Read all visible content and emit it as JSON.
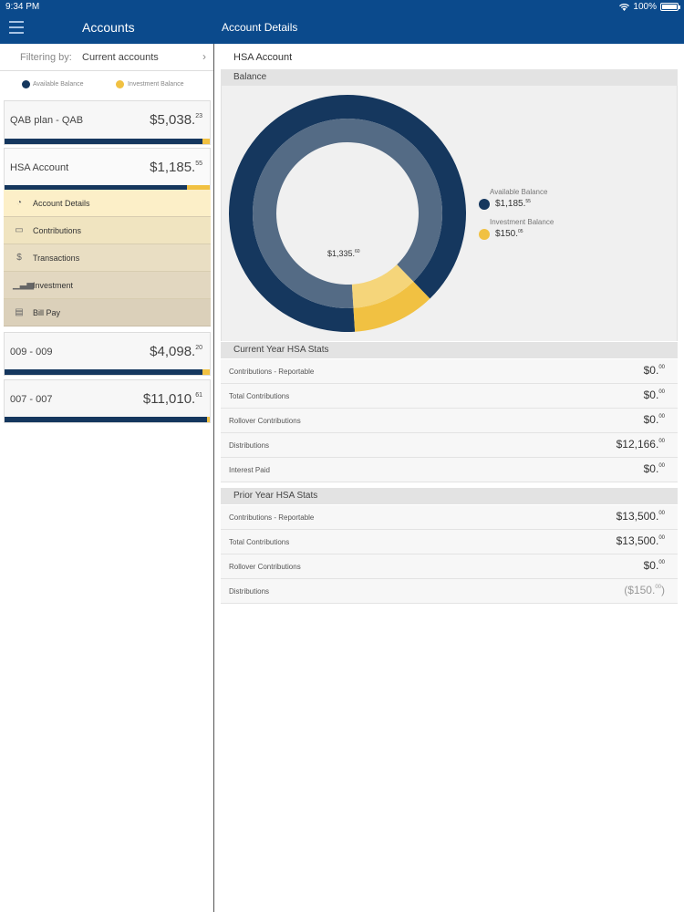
{
  "status_bar": {
    "time": "9:34 PM",
    "battery": "100%"
  },
  "header": {
    "left_title": "Accounts",
    "right_title": "Account Details"
  },
  "filter": {
    "label": "Filtering by:",
    "value": "Current accounts"
  },
  "legend": {
    "available": "Available Balance",
    "investment": "Investment Balance"
  },
  "colors": {
    "brand": "#0b4a8c",
    "available": "#15375e",
    "investment": "#f1c142",
    "ring_inner": "#546b85",
    "ring_inner_light": "#f5d57a"
  },
  "accounts": [
    {
      "name": "QAB plan - QAB",
      "amount": "$5,038.",
      "cents": "23",
      "available_pct": 0.965
    },
    {
      "name": "HSA Account",
      "amount": "$1,185.",
      "cents": "55",
      "available_pct": 0.887
    },
    {
      "name": "009 - 009",
      "amount": "$4,098.",
      "cents": "20",
      "available_pct": 0.963
    },
    {
      "name": "007 - 007",
      "amount": "$11,010.",
      "cents": "61",
      "available_pct": 0.987
    }
  ],
  "menu": [
    {
      "label": "Account Details",
      "icon": "pie-chart-icon"
    },
    {
      "label": "Contributions",
      "icon": "cash-icon"
    },
    {
      "label": "Transactions",
      "icon": "dollar-circle-icon"
    },
    {
      "label": "Investment",
      "icon": "bar-chart-icon"
    },
    {
      "label": "Bill Pay",
      "icon": "bill-icon"
    }
  ],
  "details": {
    "title": "HSA Account",
    "balance_header": "Balance",
    "total": "$1,335.",
    "total_cents": "60",
    "available_label": "Available Balance",
    "available_value": "$1,185.",
    "available_cents": "55",
    "investment_label": "Investment Balance",
    "investment_value": "$150.",
    "investment_cents": "05"
  },
  "chart_data": {
    "type": "pie",
    "categories": [
      "Available Balance",
      "Investment Balance"
    ],
    "values": [
      1185.55,
      150.05
    ]
  },
  "current_year": {
    "header": "Current Year HSA Stats",
    "rows": [
      {
        "label": "Contributions - Reportable",
        "value": "$0.",
        "cents": "00"
      },
      {
        "label": "Total Contributions",
        "value": "$0.",
        "cents": "00"
      },
      {
        "label": "Rollover Contributions",
        "value": "$0.",
        "cents": "00"
      },
      {
        "label": "Distributions",
        "value": "$12,166.",
        "cents": "00"
      },
      {
        "label": "Interest Paid",
        "value": "$0.",
        "cents": "00"
      }
    ]
  },
  "prior_year": {
    "header": "Prior Year HSA Stats",
    "rows": [
      {
        "label": "Contributions - Reportable",
        "value": "$13,500.",
        "cents": "00"
      },
      {
        "label": "Total Contributions",
        "value": "$13,500.",
        "cents": "00"
      },
      {
        "label": "Rollover Contributions",
        "value": "$0.",
        "cents": "00"
      },
      {
        "label": "Distributions",
        "value": "($150.",
        "cents": "00",
        "close": ")"
      }
    ]
  }
}
